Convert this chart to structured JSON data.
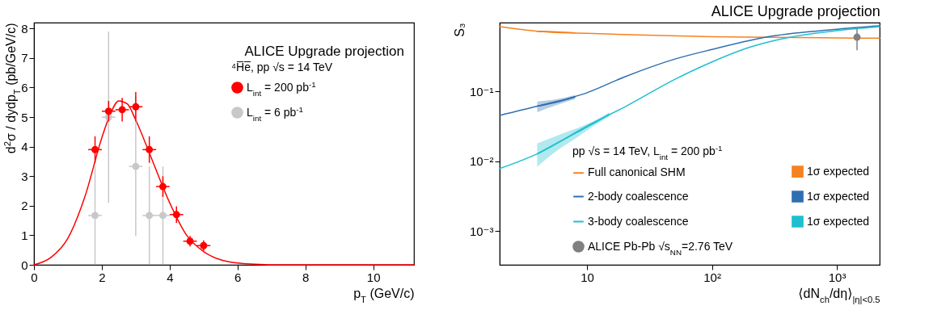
{
  "chart_data": [
    {
      "type": "scatter",
      "annotations": [
        "ALICE Upgrade projection"
      ],
      "legend_title": "⁴H̅e̅,  pp √s = 14 TeV",
      "xlabel": "p$_{T}$ (GeV/c)",
      "ylabel": "d$^{2}$σ / dydp$_{T}$ (pb/GeV/c)",
      "xlim": [
        0,
        11.2
      ],
      "ylim": [
        0,
        8.2
      ],
      "xticks": [
        0,
        2,
        4,
        6,
        8,
        10
      ],
      "yticks": [
        0,
        1,
        2,
        3,
        4,
        5,
        6,
        7,
        8
      ],
      "legend": "top right",
      "series": [
        {
          "name": "L$_{int}$ = 200 pb$^{-1}$",
          "color": "#ff0000",
          "x": [
            1.8,
            2.2,
            2.6,
            3.0,
            3.4,
            3.8,
            4.2,
            4.6,
            5.0
          ],
          "values": [
            3.9,
            5.2,
            5.25,
            5.35,
            3.9,
            2.65,
            1.7,
            0.8,
            0.65
          ],
          "errors": [
            0.45,
            0.35,
            0.4,
            0.5,
            0.45,
            0.35,
            0.28,
            0.18,
            0.18
          ],
          "xerrors": [
            0.2,
            0.2,
            0.2,
            0.2,
            0.2,
            0.2,
            0.2,
            0.2,
            0.2
          ]
        },
        {
          "name": "L$_{int}$ = 6 pb$^{-1}$",
          "color": "#c8c8c8",
          "x": [
            1.8,
            2.2,
            3.0,
            3.4,
            3.8
          ],
          "values": [
            1.67,
            5.0,
            3.33,
            1.67,
            1.67
          ],
          "errors": [
            [
              0,
              3.33
            ],
            [
              2.1,
              7.9
            ],
            [
              0.97,
              5.7
            ],
            [
              0,
              3.33
            ],
            [
              0,
              3.33
            ]
          ],
          "xerrors": [
            0.2,
            0.2,
            0.2,
            0.2,
            0.2
          ]
        },
        {
          "type": "line",
          "color": "#ff0000",
          "x": [
            0,
            0.5,
            1,
            1.5,
            2,
            2.25,
            2.5,
            2.75,
            3,
            3.5,
            4,
            4.5,
            5,
            5.5,
            6,
            6.5,
            7,
            11.2
          ],
          "values": [
            0,
            0.25,
            0.9,
            2.3,
            4.3,
            5.1,
            5.55,
            5.45,
            4.9,
            3.5,
            2.1,
            1.0,
            0.45,
            0.17,
            0.06,
            0.02,
            0,
            0
          ]
        }
      ]
    },
    {
      "type": "line",
      "title": "ALICE Upgrade projection",
      "legend_title": "pp √s = 14 TeV, L$_{int}$ = 200 pb$^{-1}$",
      "xlabel": "⟨dN$_{ch}$/dη⟩$_{|η|<0.5}$",
      "ylabel": "S₃",
      "log": "xy",
      "xlim": [
        2,
        2200
      ],
      "ylim": [
        0.00033,
        0.97
      ],
      "xticks": [
        10,
        {
          "value": 100,
          "label": "10²"
        },
        {
          "value": 1000,
          "label": "10³"
        }
      ],
      "yticks": [
        {
          "value": 0.001,
          "label": "10⁻³"
        },
        {
          "value": 0.01,
          "label": "10⁻²"
        },
        {
          "value": 0.1,
          "label": "10⁻¹"
        }
      ],
      "legend": "bottom right",
      "series": [
        {
          "name": "Full canonical SHM",
          "color": "#f58220",
          "x": [
            2,
            4,
            10,
            30,
            100,
            300,
            1000,
            2200
          ],
          "values": [
            0.85,
            0.73,
            0.68,
            0.64,
            0.61,
            0.595,
            0.585,
            0.58
          ]
        },
        {
          "name": "2-body coalescence",
          "color": "#2f6fb0",
          "x": [
            2,
            4,
            10,
            20,
            50,
            100,
            300,
            1000,
            2200
          ],
          "values": [
            0.0455,
            0.0616,
            0.096,
            0.162,
            0.29,
            0.4,
            0.62,
            0.78,
            0.87
          ]
        },
        {
          "name": "3-body coalescence",
          "color": "#1fbfd0",
          "x": [
            2,
            4,
            10,
            20,
            50,
            100,
            200,
            400,
            1000,
            2200
          ],
          "values": [
            0.0079,
            0.0128,
            0.032,
            0.06,
            0.148,
            0.265,
            0.43,
            0.59,
            0.745,
            0.85
          ]
        },
        {
          "name": "ALICE Pb-Pb √s$_{NN}$=2.76 TeV",
          "type": "scatter",
          "color": "#808080",
          "x": [
            1450
          ],
          "values": [
            0.6
          ],
          "errors": [
            [
              0.39,
              0.8
            ]
          ]
        },
        {
          "name": "1σ expected",
          "color": "#f58220",
          "x": [
            4,
            6,
            8
          ],
          "values": [
            0.73,
            0.71,
            0.69
          ],
          "lower": [
            0.71,
            0.69,
            0.675
          ],
          "upper": [
            0.75,
            0.73,
            0.705
          ]
        },
        {
          "name": "1σ expected",
          "color": "#2f6fb0",
          "x": [
            4,
            6,
            8
          ],
          "values": [
            0.0616,
            0.072,
            0.083
          ],
          "lower": [
            0.0506,
            0.066,
            0.078
          ],
          "upper": [
            0.072,
            0.079,
            0.089
          ]
        },
        {
          "name": "1σ expected",
          "color": "#1fbfd0",
          "x": [
            4,
            6,
            8,
            11,
            15
          ],
          "values": [
            0.0128,
            0.019,
            0.025,
            0.034,
            0.047
          ],
          "lower": [
            0.0084,
            0.015,
            0.021,
            0.031,
            0.044
          ],
          "upper": [
            0.018,
            0.024,
            0.029,
            0.037,
            0.05
          ]
        }
      ]
    }
  ]
}
